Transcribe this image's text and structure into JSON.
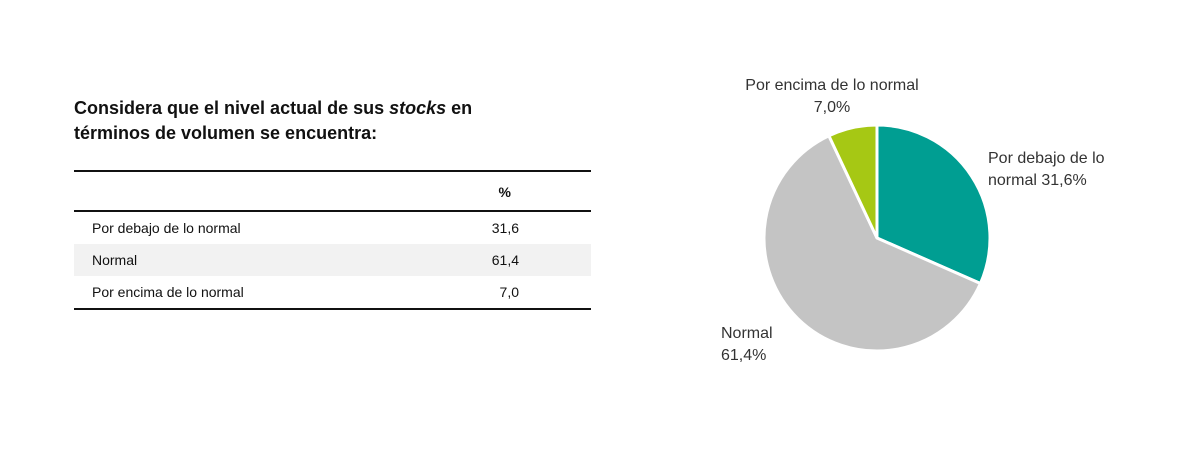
{
  "question": {
    "part1": "Considera que el nivel actual de sus ",
    "italic": "stocks",
    "part2": " en",
    "line2": "términos de volumen se encuentra:"
  },
  "table": {
    "header": "%",
    "rows": [
      {
        "label": "Por debajo de lo normal",
        "value": "31,6"
      },
      {
        "label": "Normal",
        "value": "61,4"
      },
      {
        "label": "Por encima de lo normal",
        "value": "7,0"
      }
    ]
  },
  "chart_data": {
    "type": "pie",
    "slices": [
      {
        "name": "Por debajo de lo normal",
        "value": 31.6,
        "color": "#009e92",
        "label_lines": [
          "Por debajo de lo",
          "normal 31,6%"
        ]
      },
      {
        "name": "Normal",
        "value": 61.4,
        "color": "#c4c4c4",
        "label_lines": [
          "Normal",
          "61,4%"
        ]
      },
      {
        "name": "Por encima de lo normal",
        "value": 7.0,
        "color": "#a6c814",
        "label_lines": [
          "Por encima de lo normal",
          "7,0%"
        ]
      }
    ],
    "start_angle": "12 o'clock",
    "direction": "clockwise",
    "border_color": "#ffffff"
  }
}
